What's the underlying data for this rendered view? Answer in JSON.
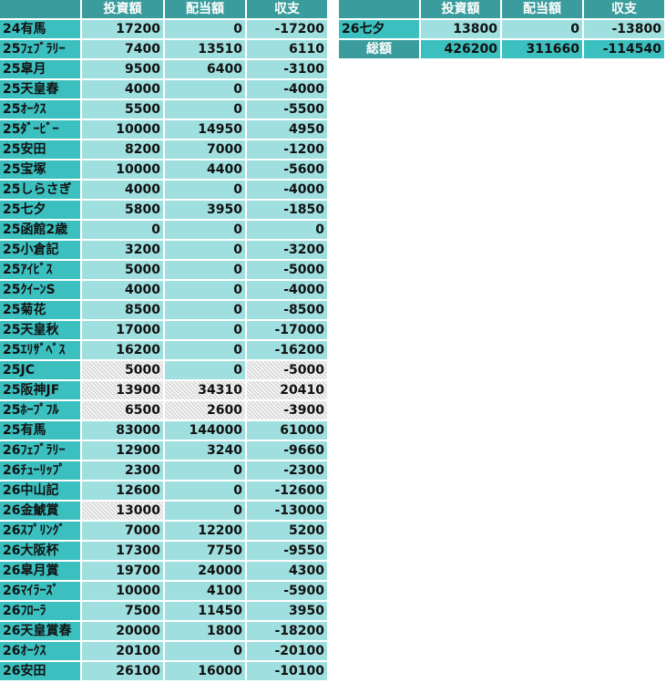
{
  "left_table": {
    "header": [
      "投資額",
      "配当額",
      "収支"
    ],
    "rows": [
      [
        "24有馬",
        17200,
        0,
        -17200
      ],
      [
        "25ﾌｪﾌﾞﾗﾘｰ",
        7400,
        13510,
        6110
      ],
      [
        "25皐月",
        9500,
        6400,
        -3100
      ],
      [
        "25天皇春",
        4000,
        0,
        -4000
      ],
      [
        "25ｵｰｸｽ",
        5500,
        0,
        -5500
      ],
      [
        "25ﾀﾞｰﾋﾞｰ",
        10000,
        14950,
        4950
      ],
      [
        "25安田",
        8200,
        7000,
        -1200
      ],
      [
        "25宝塚",
        10000,
        4400,
        -5600
      ],
      [
        "25しらさぎ",
        4000,
        0,
        -4000
      ],
      [
        "25七夕",
        5800,
        3950,
        -1850
      ],
      [
        "25函館2歳",
        0,
        0,
        0
      ],
      [
        "25小倉記",
        3200,
        0,
        -3200
      ],
      [
        "25ｱｲﾋﾞｽ",
        5000,
        0,
        -5000
      ],
      [
        "25ｸｲｰﾝS",
        4000,
        0,
        -4000
      ],
      [
        "25菊花",
        8500,
        0,
        -8500
      ],
      [
        "25天皇秋",
        17000,
        0,
        -17000
      ],
      [
        "25ｴﾘｻﾞﾍﾞｽ",
        16200,
        0,
        -16200
      ],
      [
        "25JC",
        5000,
        0,
        -5000
      ],
      [
        "25阪神JF",
        13900,
        34310,
        20410
      ],
      [
        "25ﾎｰﾌﾟﾌﾙ",
        6500,
        2600,
        -3900
      ],
      [
        "25有馬",
        83000,
        144000,
        61000
      ],
      [
        "26ﾌｪﾌﾞﾗﾘｰ",
        12900,
        3240,
        -9660
      ],
      [
        "26ﾁｭｰﾘｯﾌﾟ",
        2300,
        0,
        -2300
      ],
      [
        "26中山記",
        12600,
        0,
        -12600
      ],
      [
        "26金鯱賞",
        13000,
        0,
        -13000
      ],
      [
        "26ｽﾌﾟﾘﾝｸﾞ",
        7000,
        12200,
        5200
      ],
      [
        "26大阪杯",
        17300,
        7750,
        -9550
      ],
      [
        "26皐月賞",
        19700,
        24000,
        4300
      ],
      [
        "26ﾏｲﾗｰｽﾞ",
        10000,
        4100,
        -5900
      ],
      [
        "26ﾌﾛｰﾗ",
        7500,
        11450,
        3950
      ],
      [
        "26天皇賞春",
        20000,
        1800,
        -18200
      ],
      [
        "26ｵｰｸｽ",
        20100,
        0,
        -20100
      ],
      [
        "26安田",
        26100,
        16000,
        -10100
      ]
    ]
  },
  "right_table": {
    "header": [
      "投資額",
      "配当額",
      "収支"
    ],
    "rows": [
      [
        "26七夕",
        13800,
        0,
        -13800
      ],
      [
        "総額",
        426200,
        311660,
        -114540
      ]
    ]
  }
}
